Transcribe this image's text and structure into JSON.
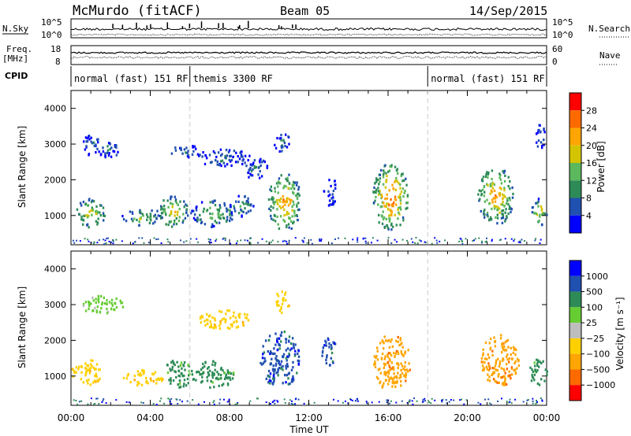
{
  "header": {
    "station": "McMurdo (fitACF)",
    "beam": "Beam 05",
    "date": "14/Sep/2015"
  },
  "summary": {
    "nsky_label": "N.Sky",
    "nsearch_label": "N.Search",
    "freq_label_1": "Freq.",
    "freq_label_2": "[MHz]",
    "nave_label": "Nave",
    "cpid_label": "CPID",
    "noise_ticks": [
      "10^5",
      "10^0"
    ],
    "freq_ticks": [
      "18",
      "8"
    ],
    "nave_ticks": [
      "60",
      "0"
    ],
    "cpid_segments": [
      {
        "label": "normal (fast) 151 RF",
        "start_h": 0,
        "end_h": 6
      },
      {
        "label": "themis 3300 RF",
        "start_h": 6,
        "end_h": 18
      },
      {
        "label": "normal (fast) 151 RF",
        "start_h": 18,
        "end_h": 24
      }
    ]
  },
  "chart_data": [
    {
      "type": "heatmap",
      "name": "power-panel",
      "ylabel": "Slant Range [km]",
      "x_range_h": [
        0,
        24
      ],
      "ylim": [
        180,
        4500
      ],
      "yticks": [
        1000,
        2000,
        3000,
        4000
      ],
      "colorbar": {
        "label": "Power [dB]",
        "ticks": [
          "4",
          "8",
          "12",
          "16",
          "20",
          "24",
          "28"
        ],
        "colors": [
          "#0000ff",
          "#2050b0",
          "#2e8b57",
          "#5cb85c",
          "#d4c400",
          "#ffa500",
          "#ff6a00",
          "#ff0000"
        ]
      },
      "echo_regions": [
        {
          "t0": 0.2,
          "t1": 1.7,
          "r0": 700,
          "r1": 1500,
          "level": 20
        },
        {
          "t0": 0.5,
          "t1": 1.4,
          "r0": 2700,
          "r1": 3300,
          "level": 8
        },
        {
          "t0": 1.3,
          "t1": 2.5,
          "r0": 2650,
          "r1": 3150,
          "level": 8
        },
        {
          "t0": 2.5,
          "t1": 4.6,
          "r0": 750,
          "r1": 1200,
          "level": 16
        },
        {
          "t0": 4.3,
          "t1": 5.9,
          "r0": 700,
          "r1": 1600,
          "level": 20
        },
        {
          "t0": 5.0,
          "t1": 6.5,
          "r0": 2650,
          "r1": 3000,
          "level": 8
        },
        {
          "t0": 6.0,
          "t1": 8.2,
          "r0": 700,
          "r1": 1450,
          "level": 16
        },
        {
          "t0": 6.3,
          "t1": 9.0,
          "r0": 2400,
          "r1": 2900,
          "level": 8
        },
        {
          "t0": 8.0,
          "t1": 9.2,
          "r0": 1000,
          "r1": 1600,
          "level": 12
        },
        {
          "t0": 8.7,
          "t1": 9.9,
          "r0": 2000,
          "r1": 2650,
          "level": 8
        },
        {
          "t0": 9.9,
          "t1": 11.6,
          "r0": 600,
          "r1": 2200,
          "level": 24
        },
        {
          "t0": 10.2,
          "t1": 11.0,
          "r0": 2800,
          "r1": 3400,
          "level": 8
        },
        {
          "t0": 12.7,
          "t1": 13.4,
          "r0": 1300,
          "r1": 2100,
          "level": 8
        },
        {
          "t0": 15.2,
          "t1": 17.0,
          "r0": 600,
          "r1": 2500,
          "level": 28
        },
        {
          "t0": 20.5,
          "t1": 22.3,
          "r0": 750,
          "r1": 2400,
          "level": 24
        },
        {
          "t0": 23.2,
          "t1": 24.0,
          "r0": 750,
          "r1": 1500,
          "level": 20
        },
        {
          "t0": 23.4,
          "t1": 23.9,
          "r0": 2900,
          "r1": 3600,
          "level": 8
        }
      ]
    },
    {
      "type": "heatmap",
      "name": "velocity-panel",
      "ylabel": "Slant Range [km]",
      "xlabel": "Time UT",
      "x_range_h": [
        0,
        24
      ],
      "xticks": [
        "00:00",
        "04:00",
        "08:00",
        "12:00",
        "16:00",
        "20:00",
        "00:00"
      ],
      "ylim": [
        180,
        4500
      ],
      "yticks": [
        1000,
        2000,
        3000,
        4000
      ],
      "colorbar": {
        "label": "Velocity [m s⁻¹]",
        "ticks": [
          "1000",
          "500",
          "100",
          "25",
          "−25",
          "−100",
          "−500",
          "−1000"
        ],
        "colors": [
          "#0000ff",
          "#2050b0",
          "#2e8b57",
          "#66cc33",
          "#bdbdbd",
          "#ffd000",
          "#ffa500",
          "#ff6a00",
          "#ff0000"
        ]
      },
      "echo_regions": [
        {
          "t0": 0.0,
          "t1": 1.5,
          "r0": 750,
          "r1": 1500,
          "vel": -100
        },
        {
          "t0": 0.5,
          "t1": 2.6,
          "r0": 2750,
          "r1": 3300,
          "vel": 25
        },
        {
          "t0": 2.6,
          "t1": 4.6,
          "r0": 750,
          "r1": 1200,
          "vel": -100
        },
        {
          "t0": 4.6,
          "t1": 6.1,
          "r0": 700,
          "r1": 1500,
          "vel": 100
        },
        {
          "t0": 6.0,
          "t1": 8.3,
          "r0": 700,
          "r1": 1450,
          "vel": 100
        },
        {
          "t0": 6.4,
          "t1": 9.0,
          "r0": 2350,
          "r1": 2900,
          "vel": -100
        },
        {
          "t0": 9.5,
          "t1": 11.5,
          "r0": 700,
          "r1": 2300,
          "vel": 500
        },
        {
          "t0": 10.2,
          "t1": 11.0,
          "r0": 2800,
          "r1": 3400,
          "vel": -100
        },
        {
          "t0": 12.6,
          "t1": 13.4,
          "r0": 1300,
          "r1": 2100,
          "vel": 500
        },
        {
          "t0": 15.2,
          "t1": 17.1,
          "r0": 600,
          "r1": 2200,
          "vel": -500
        },
        {
          "t0": 20.6,
          "t1": 22.6,
          "r0": 750,
          "r1": 2200,
          "vel": -500
        },
        {
          "t0": 23.1,
          "t1": 24.0,
          "r0": 750,
          "r1": 1500,
          "vel": 100
        }
      ]
    }
  ]
}
